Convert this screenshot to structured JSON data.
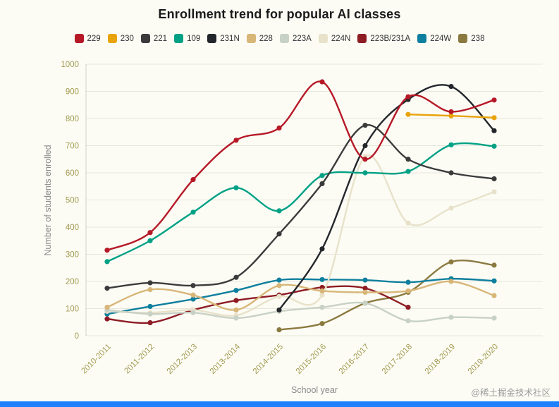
{
  "page": {
    "watermark": "@稀土掘金技术社区"
  },
  "colors": {
    "background": "#fcfcf5",
    "title_text": "#1a1a1a",
    "axis_text": "#a39a4f",
    "axis_title": "#8a8a8a",
    "gridline": "#e6e6dc",
    "axis_line": "#cfcfc6",
    "legend_text": "#333333",
    "watermark": "#9b9b9b",
    "bottom_bar": "#1e80ff"
  },
  "chart_data": {
    "type": "line",
    "title": "Enrollment trend for popular AI classes",
    "xlabel": "School year",
    "ylabel": "Number of students enrolled",
    "ylim": [
      0,
      1000
    ],
    "yticks": [
      0,
      100,
      200,
      300,
      400,
      500,
      600,
      700,
      800,
      900,
      1000
    ],
    "grid": "horizontal",
    "legend_position": "top",
    "categories": [
      "2010-2011",
      "2011-2012",
      "2012-2013",
      "2013-2014",
      "2014-2015",
      "2015-2016",
      "2016-2017",
      "2017-2018",
      "2018-2019",
      "2019-2020"
    ],
    "series": [
      {
        "name": "229",
        "color": "#b61826",
        "values": [
          315,
          380,
          575,
          720,
          765,
          935,
          650,
          880,
          825,
          868
        ]
      },
      {
        "name": "230",
        "color": "#e9a30b",
        "values": [
          null,
          null,
          null,
          null,
          null,
          null,
          null,
          815,
          810,
          803
        ]
      },
      {
        "name": "221",
        "color": "#3b3b3b",
        "values": [
          175,
          195,
          185,
          215,
          375,
          560,
          775,
          650,
          600,
          578
        ]
      },
      {
        "name": "109",
        "color": "#00a185",
        "values": [
          273,
          350,
          455,
          545,
          460,
          590,
          600,
          605,
          703,
          698
        ]
      },
      {
        "name": "231N",
        "color": "#23262a",
        "values": [
          null,
          null,
          null,
          null,
          95,
          320,
          700,
          870,
          918,
          755
        ]
      },
      {
        "name": "228",
        "color": "#d8b678",
        "values": [
          105,
          170,
          150,
          95,
          185,
          165,
          160,
          165,
          200,
          148
        ]
      },
      {
        "name": "223A",
        "color": "#c8d1c5",
        "values": [
          95,
          80,
          85,
          65,
          90,
          105,
          120,
          55,
          68,
          65
        ]
      },
      {
        "name": "224N",
        "color": "#e8e2ca",
        "values": [
          90,
          85,
          95,
          75,
          145,
          150,
          660,
          415,
          470,
          530
        ]
      },
      {
        "name": "223B/231A",
        "color": "#8e1c24",
        "values": [
          62,
          48,
          95,
          130,
          150,
          178,
          175,
          105,
          null,
          null
        ]
      },
      {
        "name": "224W",
        "color": "#0e7f9e",
        "values": [
          80,
          108,
          135,
          167,
          205,
          207,
          205,
          197,
          210,
          202
        ]
      },
      {
        "name": "238",
        "color": "#8b7a40",
        "values": [
          null,
          null,
          null,
          null,
          22,
          45,
          120,
          160,
          272,
          260
        ]
      }
    ]
  }
}
